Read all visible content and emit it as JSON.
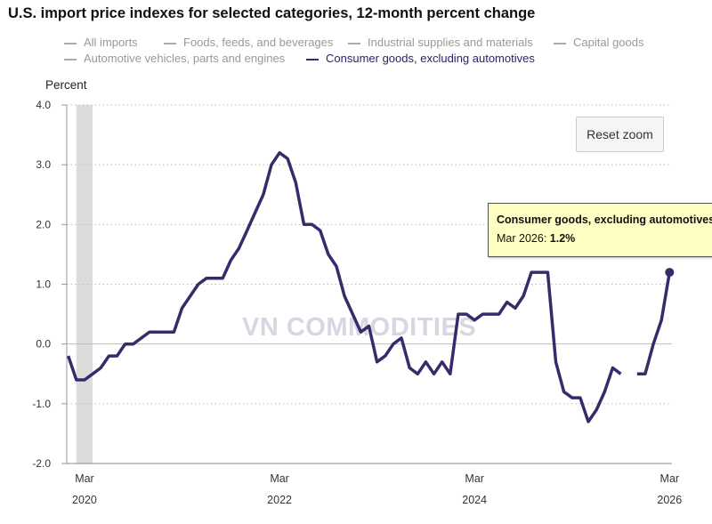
{
  "title": "U.S. import price indexes for selected categories, 12-month percent change",
  "legend": [
    {
      "label": "All imports",
      "active": false
    },
    {
      "label": "Foods, feeds, and beverages",
      "active": false
    },
    {
      "label": "Industrial supplies and materials",
      "active": false
    },
    {
      "label": "Capital goods",
      "active": false
    },
    {
      "label": "Automotive vehicles, parts and engines",
      "active": false
    },
    {
      "label": "Consumer goods, excluding automotives",
      "active": true
    }
  ],
  "reset_zoom_label": "Reset zoom",
  "tooltip": {
    "series": "Consumer goods, excluding automotives",
    "date": "Mar 2026",
    "sep": ": ",
    "value": "1.2%"
  },
  "watermark": "VN COMMODITIES",
  "colors": {
    "series": "#3b2a6b",
    "inactive_legend": "#999999",
    "recession": "#dcdcdc",
    "tooltip_bg": "#ffffc4"
  },
  "chart_data": {
    "type": "line",
    "ylabel": "Percent",
    "ylim": [
      -2.0,
      4.0
    ],
    "yticks": [
      "4.0",
      "3.0",
      "2.0",
      "1.0",
      "0.0",
      "-1.0",
      "-2.0"
    ],
    "xticks": [
      {
        "month": "Mar",
        "year": "2020"
      },
      {
        "month": "Mar",
        "year": "2022"
      },
      {
        "month": "Mar",
        "year": "2024"
      },
      {
        "month": "Mar",
        "year": "2026"
      }
    ],
    "x_start": "2020-01",
    "x_end": "2026-03",
    "grid": "horizontal dotted",
    "recession_shading": [
      "2020-02",
      "2020-04"
    ],
    "series": [
      {
        "name": "Consumer goods, excluding automotives",
        "x": [
          "2020-01",
          "2020-02",
          "2020-03",
          "2020-04",
          "2020-05",
          "2020-06",
          "2020-07",
          "2020-08",
          "2020-09",
          "2020-10",
          "2020-11",
          "2020-12",
          "2021-01",
          "2021-02",
          "2021-03",
          "2021-04",
          "2021-05",
          "2021-06",
          "2021-07",
          "2021-08",
          "2021-09",
          "2021-10",
          "2021-11",
          "2021-12",
          "2022-01",
          "2022-02",
          "2022-03",
          "2022-04",
          "2022-05",
          "2022-06",
          "2022-07",
          "2022-08",
          "2022-09",
          "2022-10",
          "2022-11",
          "2022-12",
          "2023-01",
          "2023-02",
          "2023-03",
          "2023-04",
          "2023-05",
          "2023-06",
          "2023-07",
          "2023-08",
          "2023-09",
          "2023-10",
          "2023-11",
          "2023-12",
          "2024-01",
          "2024-02",
          "2024-03",
          "2024-04",
          "2024-05",
          "2024-06",
          "2024-07",
          "2024-08",
          "2024-09",
          "2024-10",
          "2024-11",
          "2024-12",
          "2025-01",
          "2025-02",
          "2025-03",
          "2025-04",
          "2025-05",
          "2025-06",
          "2025-07",
          "2025-08",
          "2025-09",
          "2025-10",
          "2025-11",
          "2025-12",
          "2026-01",
          "2026-02",
          "2026-03"
        ],
        "values": [
          -0.2,
          -0.6,
          -0.6,
          -0.5,
          -0.4,
          -0.2,
          -0.2,
          0.0,
          0.0,
          0.1,
          0.2,
          0.2,
          0.2,
          0.2,
          0.6,
          0.8,
          1.0,
          1.1,
          1.1,
          1.1,
          1.4,
          1.6,
          1.9,
          2.2,
          2.5,
          3.0,
          3.2,
          3.1,
          2.7,
          2.0,
          2.0,
          1.9,
          1.5,
          1.3,
          0.8,
          0.5,
          0.2,
          0.3,
          -0.3,
          -0.2,
          0.0,
          0.1,
          -0.4,
          -0.5,
          -0.3,
          -0.5,
          -0.3,
          -0.5,
          0.5,
          0.5,
          0.4,
          0.5,
          0.5,
          0.5,
          0.7,
          0.6,
          0.8,
          1.2,
          1.2,
          1.2,
          -0.3,
          -0.8,
          -0.9,
          -0.9,
          -1.3,
          -1.1,
          -0.8,
          -0.4,
          -0.5,
          null,
          -0.5,
          -0.5,
          0.0,
          0.4,
          1.2
        ]
      }
    ]
  }
}
